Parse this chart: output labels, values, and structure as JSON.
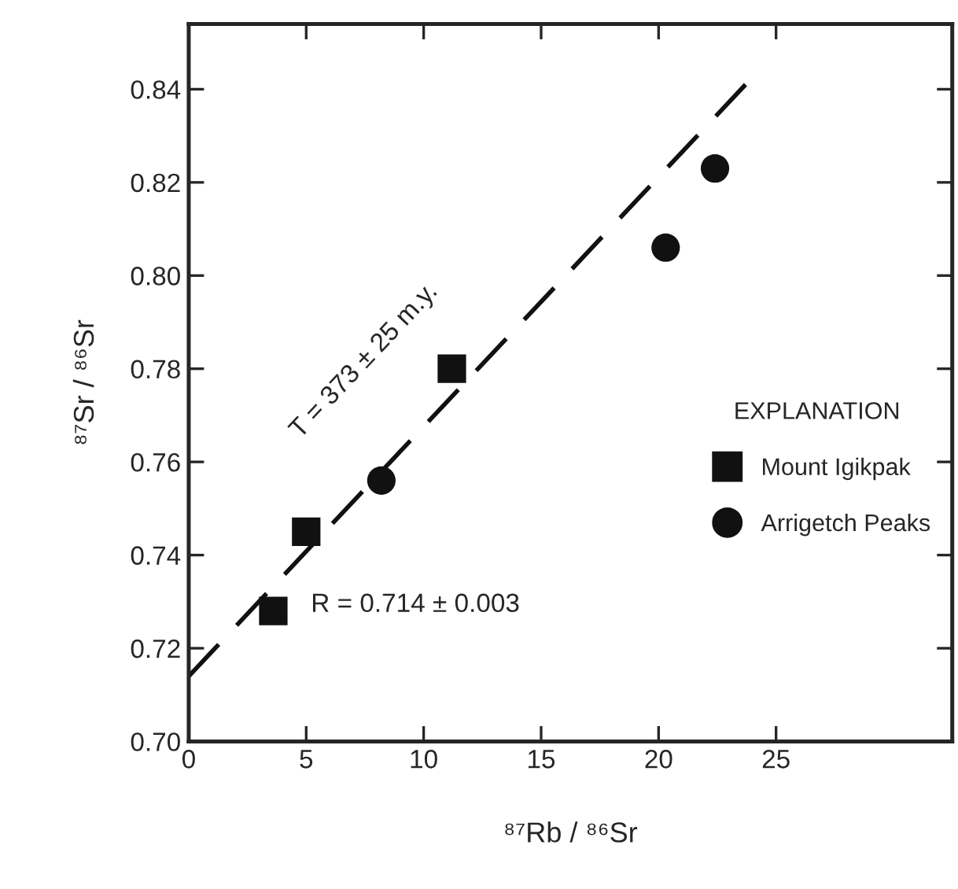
{
  "chart_data": {
    "type": "scatter",
    "xlabel": "⁸⁷Rb / ⁸⁶Sr",
    "ylabel": "⁸⁷Sr / ⁸⁶Sr",
    "legend_title": "EXPLANATION",
    "series": [
      {
        "name": "Mount Igikpak",
        "marker": "square",
        "color": "#111111",
        "x": [
          3.6,
          5.0,
          11.2
        ],
        "values": [
          0.728,
          0.745,
          0.78
        ]
      },
      {
        "name": "Arrigetch Peaks",
        "marker": "circle",
        "color": "#111111",
        "x": [
          8.2,
          20.3,
          22.4
        ],
        "values": [
          0.756,
          0.806,
          0.823
        ]
      },
      {
        "type": "line",
        "marker": "none",
        "line_style": "dashed",
        "color": "#111111",
        "x": [
          0,
          23.7
        ],
        "values": [
          0.714,
          0.841
        ]
      }
    ],
    "annotations": [
      "T = 373 ± 25 m.y.",
      "R = 0.714 ± 0.003"
    ],
    "xlim": [
      0,
      32.5
    ],
    "ylim": [
      0.7,
      0.854
    ],
    "xticks": [
      0,
      5,
      10,
      15,
      20,
      25
    ],
    "yticks": [
      {
        "value": 0.7,
        "label": "0.70"
      },
      0.72,
      0.74,
      0.76,
      0.78,
      {
        "value": 0.8,
        "label": "0.80"
      },
      0.82,
      0.84
    ],
    "grid": false,
    "legend": "right"
  }
}
